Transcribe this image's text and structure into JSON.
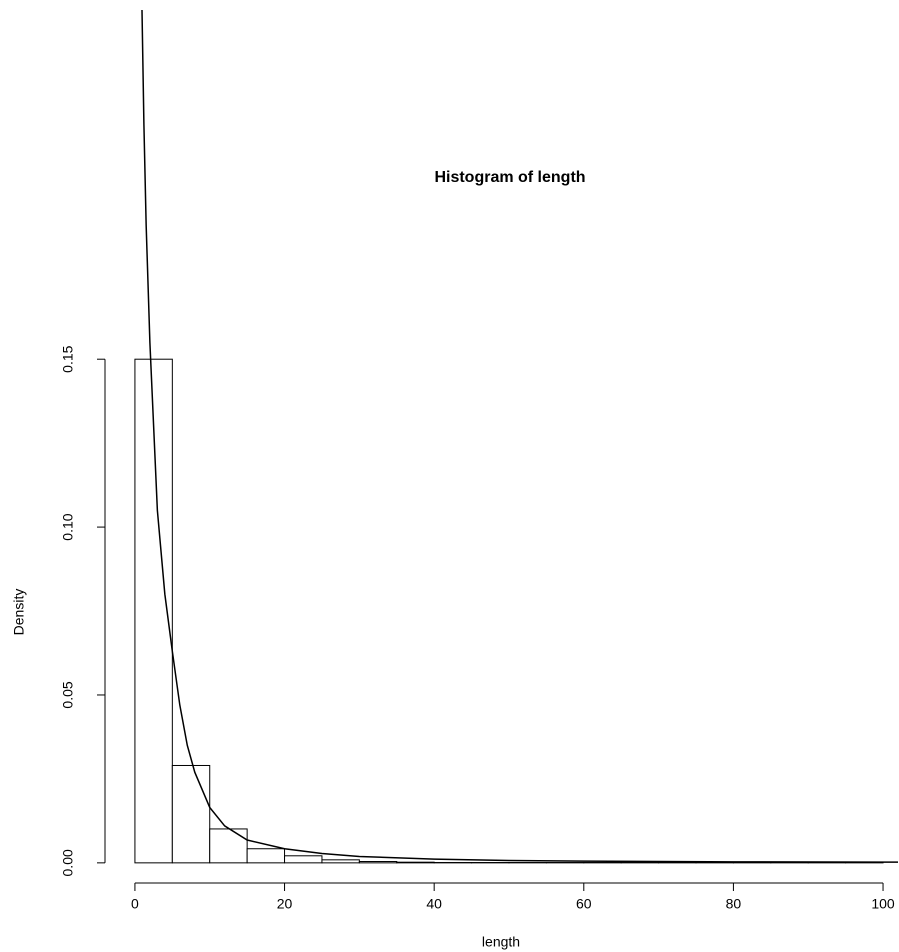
{
  "chart_data": {
    "type": "histogram",
    "title": "Histogram of length",
    "x_label": "length",
    "y_label": "Density",
    "bins": [
      0,
      5,
      10,
      15,
      20,
      25,
      30,
      35,
      40,
      45,
      50,
      55,
      60,
      65,
      70,
      75,
      80,
      85,
      90,
      95,
      100
    ],
    "values": [
      0.15,
      0.029,
      0.0101,
      0.0042,
      0.0021,
      0.0009,
      0.0004,
      0.0002,
      0.0001,
      0.0001,
      0.0001,
      0.0001,
      0.0001,
      0.0001,
      0.0001,
      0.0001,
      0.0001,
      0.0001,
      0.0001,
      0.0001
    ],
    "color": "#ffffff",
    "density_curve": {
      "x": [
        0.9,
        1.2,
        1.5,
        2,
        3,
        4,
        5,
        6,
        7,
        8,
        10,
        12,
        15,
        20,
        25,
        30,
        40,
        50,
        60,
        80,
        100,
        102
      ],
      "values": [
        0.26,
        0.22,
        0.19,
        0.155,
        0.105,
        0.08,
        0.063,
        0.047,
        0.035,
        0.027,
        0.0165,
        0.011,
        0.0068,
        0.0042,
        0.0028,
        0.0019,
        0.0011,
        0.0007,
        0.0005,
        0.0003,
        0.0002,
        0.0002
      ],
      "color": "#000000"
    },
    "xlim": [
      -4,
      102
    ],
    "ylim": [
      -0.006,
      0.254
    ],
    "xticks": [
      0,
      20,
      40,
      60,
      80,
      100
    ],
    "yticks": [
      {
        "value": 0,
        "label": "0.00"
      },
      {
        "value": 0.05,
        "label": "0.05"
      },
      {
        "value": 0.1,
        "label": "0.10"
      },
      {
        "value": 0.15,
        "label": "0.15"
      }
    ]
  }
}
